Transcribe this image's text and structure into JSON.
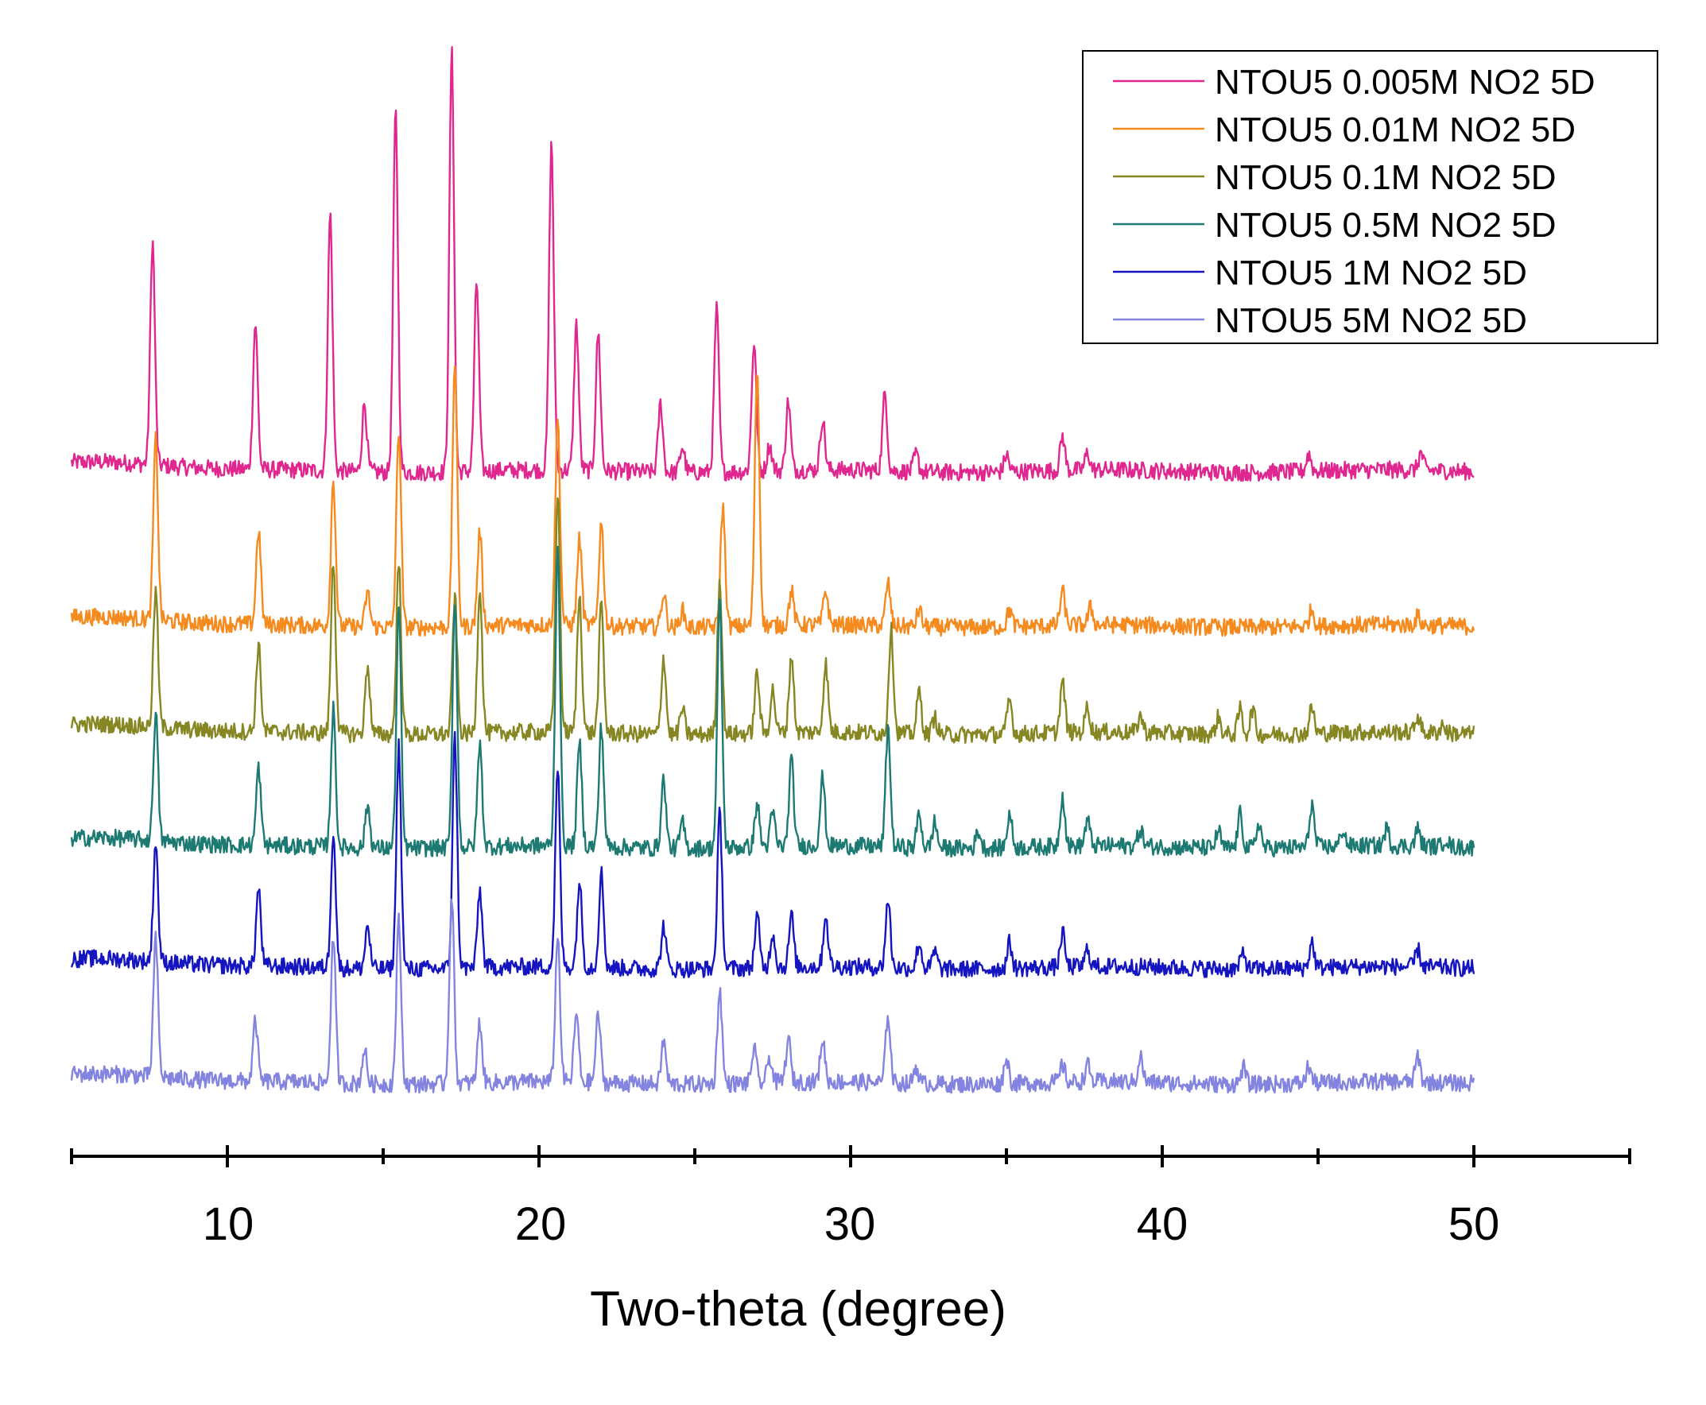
{
  "chart_data": {
    "type": "line",
    "title": "",
    "xlabel": "Two-theta (degree)",
    "ylabel": "",
    "xlim": [
      5,
      55
    ],
    "x_ticks": [
      10,
      20,
      30,
      40,
      50
    ],
    "x_minor_ticks": [
      5,
      15,
      25,
      35,
      45,
      55
    ],
    "stacked_offset": true,
    "x_range_measured": [
      5,
      50
    ],
    "legend_position": "top-right",
    "series": [
      {
        "name": "NTOU5 0.005M NO2 5D",
        "color": "#e0268f",
        "baseline": 0.2,
        "peaks": [
          [
            7.6,
            26
          ],
          [
            10.9,
            17
          ],
          [
            13.3,
            30
          ],
          [
            14.4,
            8
          ],
          [
            15.4,
            42
          ],
          [
            17.2,
            49
          ],
          [
            18.0,
            22
          ],
          [
            20.4,
            38
          ],
          [
            21.2,
            17
          ],
          [
            21.9,
            16
          ],
          [
            23.9,
            8
          ],
          [
            24.6,
            3
          ],
          [
            25.7,
            19
          ],
          [
            26.9,
            15
          ],
          [
            27.4,
            3
          ],
          [
            28.0,
            8
          ],
          [
            29.1,
            6
          ],
          [
            31.1,
            9
          ],
          [
            32.1,
            2
          ],
          [
            35.0,
            2
          ],
          [
            36.8,
            4
          ],
          [
            37.6,
            2
          ],
          [
            44.7,
            2
          ],
          [
            48.3,
            2
          ]
        ]
      },
      {
        "name": "NTOU5 0.01M NO2 5D",
        "color": "#f58a1f",
        "baseline": 0.2,
        "peaks": [
          [
            7.7,
            21
          ],
          [
            11.0,
            11
          ],
          [
            13.4,
            17
          ],
          [
            14.5,
            4
          ],
          [
            15.5,
            23
          ],
          [
            17.3,
            31
          ],
          [
            18.1,
            11
          ],
          [
            20.6,
            24
          ],
          [
            21.3,
            10
          ],
          [
            22.0,
            12
          ],
          [
            24.0,
            4
          ],
          [
            24.6,
            2
          ],
          [
            25.9,
            14
          ],
          [
            27.0,
            30
          ],
          [
            28.1,
            4
          ],
          [
            29.2,
            4
          ],
          [
            31.2,
            5
          ],
          [
            32.2,
            2
          ],
          [
            35.1,
            2
          ],
          [
            36.8,
            4
          ],
          [
            37.7,
            2
          ],
          [
            44.8,
            2
          ],
          [
            48.2,
            1
          ]
        ]
      },
      {
        "name": "NTOU5 0.1M NO2 5D",
        "color": "#868623",
        "baseline": 0.2,
        "peaks": [
          [
            7.7,
            16
          ],
          [
            11.0,
            10
          ],
          [
            13.4,
            20
          ],
          [
            14.5,
            8
          ],
          [
            15.5,
            20
          ],
          [
            17.3,
            16
          ],
          [
            18.1,
            17
          ],
          [
            20.6,
            28
          ],
          [
            21.3,
            16
          ],
          [
            22.0,
            15
          ],
          [
            24.0,
            9
          ],
          [
            24.6,
            3
          ],
          [
            25.8,
            18
          ],
          [
            27.0,
            7
          ],
          [
            27.5,
            5
          ],
          [
            28.1,
            9
          ],
          [
            29.2,
            8
          ],
          [
            31.3,
            12
          ],
          [
            32.2,
            5
          ],
          [
            32.7,
            2
          ],
          [
            35.1,
            4
          ],
          [
            36.8,
            6
          ],
          [
            37.6,
            3
          ],
          [
            39.3,
            2
          ],
          [
            41.8,
            2
          ],
          [
            42.5,
            3
          ],
          [
            42.9,
            3
          ],
          [
            44.8,
            3
          ],
          [
            48.2,
            2
          ],
          [
            49.0,
            1
          ]
        ]
      },
      {
        "name": "NTOU5 0.5M NO2 5D",
        "color": "#1d7a72",
        "baseline": 0.2,
        "peaks": [
          [
            7.7,
            15
          ],
          [
            11.0,
            9
          ],
          [
            13.4,
            16
          ],
          [
            14.5,
            5
          ],
          [
            15.5,
            28
          ],
          [
            17.3,
            29
          ],
          [
            18.1,
            12
          ],
          [
            20.6,
            35
          ],
          [
            21.3,
            12
          ],
          [
            22.0,
            14
          ],
          [
            24.0,
            8
          ],
          [
            24.6,
            3
          ],
          [
            25.8,
            29
          ],
          [
            27.0,
            5
          ],
          [
            27.5,
            4
          ],
          [
            28.1,
            10
          ],
          [
            29.1,
            8
          ],
          [
            31.2,
            14
          ],
          [
            32.2,
            4
          ],
          [
            32.7,
            3
          ],
          [
            34.1,
            2
          ],
          [
            35.1,
            4
          ],
          [
            36.8,
            6
          ],
          [
            37.6,
            3
          ],
          [
            39.3,
            2
          ],
          [
            41.8,
            2
          ],
          [
            42.5,
            4
          ],
          [
            43.1,
            3
          ],
          [
            44.8,
            5
          ],
          [
            45.8,
            2
          ],
          [
            47.2,
            2
          ],
          [
            48.2,
            2
          ],
          [
            49.1,
            1
          ]
        ]
      },
      {
        "name": "NTOU5 1M NO2 5D",
        "color": "#1414c0",
        "baseline": 0.2,
        "peaks": [
          [
            7.7,
            14
          ],
          [
            11.0,
            9
          ],
          [
            13.4,
            16
          ],
          [
            14.5,
            5
          ],
          [
            15.5,
            26
          ],
          [
            17.3,
            27
          ],
          [
            18.1,
            9
          ],
          [
            20.6,
            23
          ],
          [
            21.3,
            10
          ],
          [
            22.0,
            11
          ],
          [
            24.0,
            5
          ],
          [
            25.8,
            18
          ],
          [
            27.0,
            6
          ],
          [
            27.5,
            4
          ],
          [
            28.1,
            6
          ],
          [
            29.2,
            6
          ],
          [
            31.2,
            8
          ],
          [
            32.2,
            3
          ],
          [
            32.7,
            2
          ],
          [
            35.1,
            3
          ],
          [
            36.8,
            4
          ],
          [
            37.6,
            2
          ],
          [
            42.6,
            2
          ],
          [
            44.8,
            3
          ],
          [
            48.2,
            2
          ]
        ]
      },
      {
        "name": "NTOU5 5M NO2 5D",
        "color": "#8383e0",
        "baseline": 0.2,
        "peaks": [
          [
            7.7,
            16
          ],
          [
            10.9,
            7
          ],
          [
            13.4,
            17
          ],
          [
            14.4,
            4
          ],
          [
            15.5,
            19
          ],
          [
            17.2,
            22
          ],
          [
            18.1,
            7
          ],
          [
            20.6,
            17
          ],
          [
            21.2,
            8
          ],
          [
            21.9,
            8
          ],
          [
            24.0,
            5
          ],
          [
            25.8,
            11
          ],
          [
            26.9,
            4
          ],
          [
            27.4,
            3
          ],
          [
            28.0,
            5
          ],
          [
            29.1,
            5
          ],
          [
            31.2,
            8
          ],
          [
            32.1,
            2
          ],
          [
            35.0,
            3
          ],
          [
            36.8,
            2
          ],
          [
            37.6,
            2
          ],
          [
            39.3,
            3
          ],
          [
            42.6,
            2
          ],
          [
            44.7,
            2
          ],
          [
            48.2,
            3
          ]
        ]
      }
    ]
  }
}
